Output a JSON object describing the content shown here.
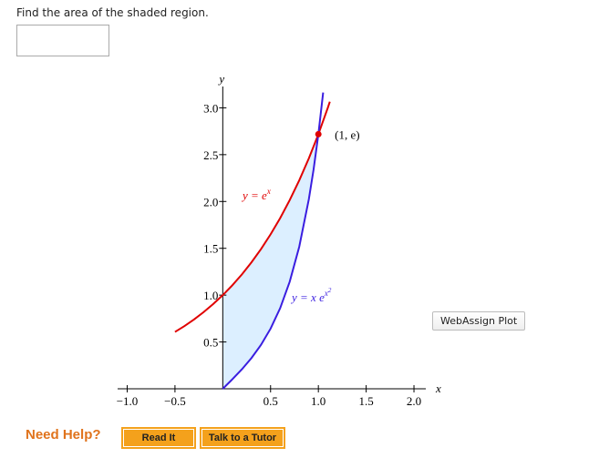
{
  "question": "Find the area of the shaded region.",
  "plot": {
    "xlim": [
      -1.1,
      2.2
    ],
    "ylim": [
      0,
      3.15
    ],
    "xticks": [
      {
        "value": -1,
        "label": "−1.0"
      },
      {
        "value": -0.5,
        "label": "−0.5"
      },
      0.5,
      {
        "value": 1,
        "label": "1.0"
      },
      1.5,
      {
        "value": 2,
        "label": "2.0"
      }
    ],
    "yticks": [
      0.5,
      {
        "value": 1,
        "label": "1.0"
      },
      1.5,
      {
        "value": 2,
        "label": "2.0"
      },
      2.5,
      {
        "value": 3,
        "label": "3.0"
      }
    ],
    "x_label": "x",
    "y_label": "y",
    "curves": [
      {
        "color": "#e00000",
        "label": {
          "text": "y = e",
          "sup": "x"
        },
        "x": [
          -0.5,
          -0.4,
          -0.3,
          -0.2,
          -0.1,
          0,
          0.1,
          0.2,
          0.3,
          0.4,
          0.5,
          0.6,
          0.7,
          0.8,
          0.9,
          1.0,
          1.1,
          1.12
        ],
        "y": [
          0.607,
          0.67,
          0.741,
          0.819,
          0.905,
          1,
          1.105,
          1.221,
          1.35,
          1.492,
          1.649,
          1.822,
          2.014,
          2.226,
          2.46,
          2.718,
          3.004,
          3.065
        ]
      },
      {
        "color": "#3a1ee0",
        "label": {
          "text": "y = x e",
          "sup": "x",
          "sup2": "2"
        },
        "x": [
          0,
          0.1,
          0.2,
          0.3,
          0.4,
          0.5,
          0.6,
          0.7,
          0.8,
          0.9,
          0.95,
          1.0,
          1.05
        ],
        "y": [
          0,
          0.101,
          0.208,
          0.328,
          0.469,
          0.642,
          0.86,
          1.143,
          1.517,
          2.023,
          2.342,
          2.718,
          3.163
        ]
      }
    ],
    "shade_color": "#dcefff",
    "point": {
      "x": 1,
      "y": 2.718,
      "label": "(1, e)",
      "color": "#e00000"
    },
    "button": "WebAssign Plot"
  },
  "help": {
    "label": "Need Help?",
    "buttons": [
      "Read It",
      "Talk to a Tutor"
    ]
  }
}
